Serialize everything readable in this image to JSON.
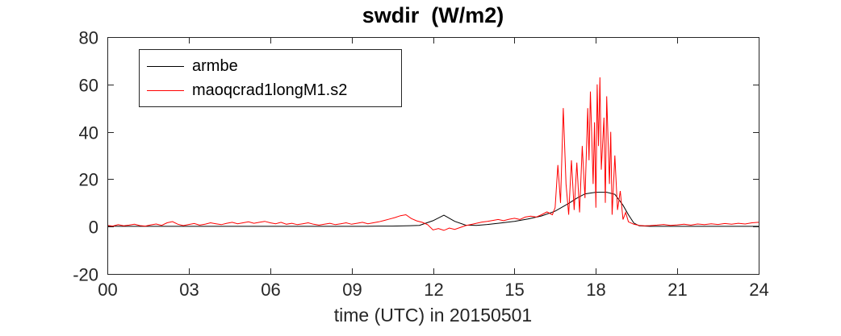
{
  "chart_data": {
    "type": "line",
    "title": "swdir  (W/m2)",
    "xlabel": "time (UTC) in 20150501",
    "ylabel": "",
    "xlim": [
      0,
      24
    ],
    "ylim": [
      -20,
      80
    ],
    "grid": false,
    "axis_color": "#262626",
    "legend_position": "upper-left",
    "x_ticks": [
      {
        "value": 0,
        "label": "00"
      },
      {
        "value": 3,
        "label": "03"
      },
      {
        "value": 6,
        "label": "06"
      },
      {
        "value": 9,
        "label": "09"
      },
      {
        "value": 12,
        "label": "12"
      },
      {
        "value": 15,
        "label": "15"
      },
      {
        "value": 18,
        "label": "18"
      },
      {
        "value": 21,
        "label": "21"
      },
      {
        "value": 24,
        "label": "24"
      }
    ],
    "y_ticks": [
      {
        "value": -20,
        "label": "-20"
      },
      {
        "value": 0,
        "label": "0"
      },
      {
        "value": 20,
        "label": "20"
      },
      {
        "value": 40,
        "label": "40"
      },
      {
        "value": 60,
        "label": "60"
      },
      {
        "value": 80,
        "label": "80"
      }
    ],
    "series": [
      {
        "name": "armbe",
        "color": "#000000",
        "width": 1,
        "x": [
          0,
          0.5,
          1,
          1.5,
          2,
          2.5,
          3,
          3.5,
          4,
          4.5,
          5,
          5.5,
          6,
          6.5,
          7,
          7.5,
          8,
          8.5,
          9,
          9.5,
          10,
          10.5,
          11,
          11.5,
          12,
          12.4,
          12.8,
          13.2,
          13.6,
          14,
          14.5,
          15,
          15.5,
          16,
          16.5,
          17,
          17.3,
          17.6,
          18,
          18.4,
          18.7,
          19,
          19.2,
          19.4,
          19.6,
          20,
          20.5,
          21,
          22,
          23,
          24
        ],
        "values": [
          0.2,
          0.1,
          0.1,
          0.1,
          0.1,
          0.1,
          0.1,
          0.1,
          0.1,
          0.1,
          0.1,
          0.1,
          0.1,
          0.1,
          0.1,
          0.1,
          0.1,
          0.1,
          0.1,
          0.1,
          0.2,
          0.2,
          0.3,
          0.5,
          2.5,
          4.8,
          2.2,
          0.6,
          0.5,
          0.9,
          1.5,
          2.2,
          3.2,
          4.5,
          6.5,
          9.8,
          12.0,
          13.8,
          14.5,
          14.5,
          13.6,
          9.0,
          5.0,
          1.5,
          0.3,
          0.1,
          0.1,
          0.1,
          0.1,
          0.1,
          0.1
        ]
      },
      {
        "name": "maoqcrad1longM1.s2",
        "color": "#ff0000",
        "width": 1,
        "x": [
          0,
          0.2,
          0.4,
          0.6,
          0.8,
          1,
          1.2,
          1.4,
          1.6,
          1.8,
          2,
          2.2,
          2.4,
          2.6,
          2.8,
          3,
          3.2,
          3.4,
          3.6,
          3.8,
          4,
          4.2,
          4.4,
          4.6,
          4.8,
          5,
          5.2,
          5.4,
          5.6,
          5.8,
          6,
          6.2,
          6.4,
          6.6,
          6.8,
          7,
          7.2,
          7.4,
          7.6,
          7.8,
          8,
          8.2,
          8.4,
          8.6,
          8.8,
          9,
          9.2,
          9.4,
          9.6,
          9.8,
          10,
          10.2,
          10.4,
          10.6,
          10.8,
          11,
          11.2,
          11.4,
          11.6,
          11.8,
          12,
          12.2,
          12.4,
          12.6,
          12.8,
          13,
          13.2,
          13.4,
          13.6,
          13.8,
          14,
          14.2,
          14.4,
          14.6,
          14.8,
          15,
          15.2,
          15.4,
          15.6,
          15.8,
          16,
          16.2,
          16.4,
          16.5,
          16.6,
          16.7,
          16.8,
          16.9,
          17,
          17.1,
          17.2,
          17.3,
          17.4,
          17.5,
          17.6,
          17.7,
          17.75,
          17.8,
          17.9,
          17.95,
          18,
          18.05,
          18.1,
          18.15,
          18.2,
          18.3,
          18.35,
          18.4,
          18.5,
          18.55,
          18.6,
          18.7,
          18.8,
          18.9,
          19,
          19.1,
          19.2,
          19.4,
          19.6,
          19.8,
          20,
          20.25,
          20.5,
          20.75,
          21,
          21.25,
          21.5,
          21.75,
          22,
          22.25,
          22.5,
          22.75,
          23,
          23.25,
          23.5,
          23.75,
          24
        ],
        "values": [
          0.5,
          0.2,
          0.8,
          0.3,
          0.6,
          1.0,
          0.4,
          0.2,
          0.7,
          1.1,
          0.5,
          1.6,
          2.1,
          1.0,
          0.4,
          0.9,
          1.3,
          0.6,
          1.0,
          1.6,
          1.2,
          0.8,
          1.4,
          1.8,
          1.2,
          1.6,
          2.0,
          1.4,
          1.8,
          2.2,
          1.6,
          1.2,
          1.8,
          1.0,
          1.4,
          0.8,
          1.2,
          1.6,
          1.0,
          0.6,
          1.0,
          1.4,
          0.8,
          1.2,
          1.6,
          1.0,
          1.4,
          1.8,
          1.2,
          1.6,
          2.0,
          2.6,
          3.2,
          3.8,
          4.6,
          5.0,
          3.4,
          2.4,
          1.8,
          0.8,
          -1.4,
          -0.8,
          -1.6,
          -0.6,
          -1.2,
          -0.4,
          0.4,
          0.9,
          1.4,
          1.9,
          2.2,
          2.6,
          3.0,
          2.5,
          3.1,
          3.5,
          3.0,
          4.0,
          4.4,
          4.0,
          5.0,
          6.2,
          5.0,
          8,
          26,
          10,
          50,
          18,
          5,
          28,
          7,
          27,
          6,
          34,
          12,
          50,
          28,
          57,
          18,
          44,
          8,
          60,
          34,
          63,
          24,
          46,
          10,
          55,
          18,
          40,
          5,
          30,
          7,
          15,
          3,
          6,
          2,
          1.0,
          0.5,
          0.3,
          0.4,
          0.6,
          0.9,
          0.5,
          0.7,
          1.0,
          0.6,
          1.1,
          0.8,
          1.2,
          0.9,
          1.3,
          1.0,
          1.4,
          1.1,
          1.6,
          1.8
        ]
      }
    ]
  }
}
